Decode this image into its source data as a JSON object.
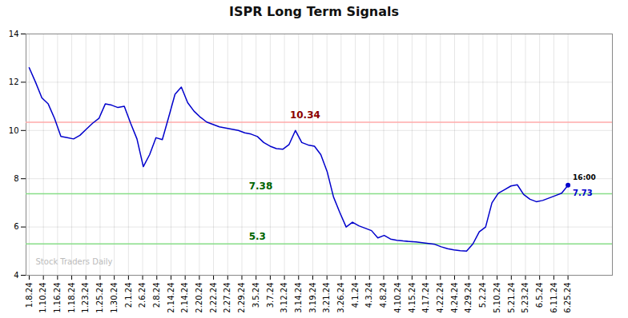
{
  "chart_data": {
    "type": "line",
    "title": "ISPR Long Term Signals",
    "x": [
      0,
      1,
      2,
      3,
      4,
      5,
      6,
      7,
      8,
      9,
      10,
      11,
      12,
      13,
      14,
      15,
      16,
      17,
      18,
      19,
      20,
      21,
      22,
      23,
      24,
      25,
      26,
      27,
      28,
      29,
      30,
      31,
      32,
      33,
      34,
      35,
      36,
      37,
      38,
      39,
      40,
      41,
      42,
      43,
      44,
      45,
      46,
      47,
      48,
      49,
      50,
      51,
      52,
      53,
      54,
      55,
      56,
      57,
      58,
      59,
      60,
      61,
      62,
      63,
      64,
      65,
      66,
      67,
      68,
      69,
      70,
      71,
      72,
      73,
      74,
      75,
      76,
      77,
      78,
      79,
      80,
      81,
      82,
      83,
      84,
      85
    ],
    "values": [
      12.6,
      12.0,
      11.35,
      11.1,
      10.5,
      9.75,
      9.7,
      9.65,
      9.8,
      10.05,
      10.3,
      10.5,
      11.1,
      11.05,
      10.95,
      11.0,
      10.3,
      9.65,
      8.5,
      9.0,
      9.7,
      9.62,
      10.55,
      11.5,
      11.8,
      11.15,
      10.8,
      10.55,
      10.35,
      10.25,
      10.15,
      10.1,
      10.05,
      10.0,
      9.9,
      9.85,
      9.75,
      9.5,
      9.35,
      9.25,
      9.22,
      9.42,
      10.0,
      9.5,
      9.4,
      9.35,
      9.0,
      8.3,
      7.25,
      6.6,
      6.0,
      6.2,
      6.05,
      5.95,
      5.85,
      5.55,
      5.65,
      5.5,
      5.45,
      5.42,
      5.4,
      5.38,
      5.35,
      5.32,
      5.28,
      5.18,
      5.1,
      5.05,
      5.02,
      5.0,
      5.3,
      5.8,
      6.0,
      7.0,
      7.4,
      7.55,
      7.7,
      7.75,
      7.35,
      7.15,
      7.05,
      7.1,
      7.2,
      7.3,
      7.4,
      7.73
    ],
    "color": "#0000cc",
    "xlim": [
      -0.5,
      92
    ],
    "xticks": [
      {
        "value": 0,
        "label": "1.8.24"
      },
      {
        "value": 2.236842105263158,
        "label": "1.10.24"
      },
      {
        "value": 4.473684210526316,
        "label": "1.16.24"
      },
      {
        "value": 6.710526315789474,
        "label": "1.18.24"
      },
      {
        "value": 8.947368421052632,
        "label": "1.23.24"
      },
      {
        "value": 11.18421052631579,
        "label": "1.25.24"
      },
      {
        "value": 13.421052631578947,
        "label": "1.30.24"
      },
      {
        "value": 15.657894736842106,
        "label": "2.1.24"
      },
      {
        "value": 17.894736842105264,
        "label": "2.6.24"
      },
      {
        "value": 20.13157894736842,
        "label": "2.8.24"
      },
      {
        "value": 22.36842105263158,
        "label": "2.14.24"
      },
      {
        "value": 24.605263157894736,
        "label": "2.14.24"
      },
      {
        "value": 26.842105263157894,
        "label": "2.20.24"
      },
      {
        "value": 29.07894736842105,
        "label": "2.22.24"
      },
      {
        "value": 31.31578947368421,
        "label": "2.27.24"
      },
      {
        "value": 33.55263157894737,
        "label": "2.29.24"
      },
      {
        "value": 35.78947368421053,
        "label": "3.5.24"
      },
      {
        "value": 38.026315789473685,
        "label": "3.7.24"
      },
      {
        "value": 40.26315789473684,
        "label": "3.12.24"
      },
      {
        "value": 42.5,
        "label": "3.14.24"
      },
      {
        "value": 44.73684210526316,
        "label": "3.19.24"
      },
      {
        "value": 46.973684210526315,
        "label": "3.21.24"
      },
      {
        "value": 49.21052631578947,
        "label": "3.26.24"
      },
      {
        "value": 51.44736842105263,
        "label": "4.1.24"
      },
      {
        "value": 53.68421052631579,
        "label": "4.3.24"
      },
      {
        "value": 55.921052631578945,
        "label": "4.8.24"
      },
      {
        "value": 58.1578947368421,
        "label": "4.10.24"
      },
      {
        "value": 60.39473684210526,
        "label": "4.15.24"
      },
      {
        "value": 62.63157894736842,
        "label": "4.17.24"
      },
      {
        "value": 64.86842105263158,
        "label": "4.22.24"
      },
      {
        "value": 67.10526315789474,
        "label": "4.24.24"
      },
      {
        "value": 69.34210526315789,
        "label": "4.29.24"
      },
      {
        "value": 71.57894736842105,
        "label": "5.2.24"
      },
      {
        "value": 73.8157894736842,
        "label": "5.10.24"
      },
      {
        "value": 76.05263157894737,
        "label": "5.21.24"
      },
      {
        "value": 78.28947368421052,
        "label": "5.23.24"
      },
      {
        "value": 80.52631578947368,
        "label": "6.5.24"
      },
      {
        "value": 82.76315789473684,
        "label": "6.11.24"
      },
      {
        "value": 85,
        "label": "6.25.24"
      }
    ],
    "ylim": [
      4,
      14
    ],
    "yticks": [
      4,
      6,
      8,
      10,
      12,
      14
    ],
    "grid": true,
    "hlines": [
      {
        "value": 10.34,
        "label": "10.34",
        "color": "#ffaaaa",
        "label_color": "#8b0000"
      },
      {
        "value": 7.38,
        "label": "7.38",
        "color": "#88dd88",
        "label_color": "#006400"
      },
      {
        "value": 5.3,
        "label": "5.3",
        "color": "#88dd88",
        "label_color": "#006400"
      }
    ],
    "annotations": [
      {
        "text": "16:00",
        "color": "#000000"
      },
      {
        "text": "7.73",
        "color": "#0000cc"
      }
    ],
    "watermark": "Stock Traders Daily"
  }
}
